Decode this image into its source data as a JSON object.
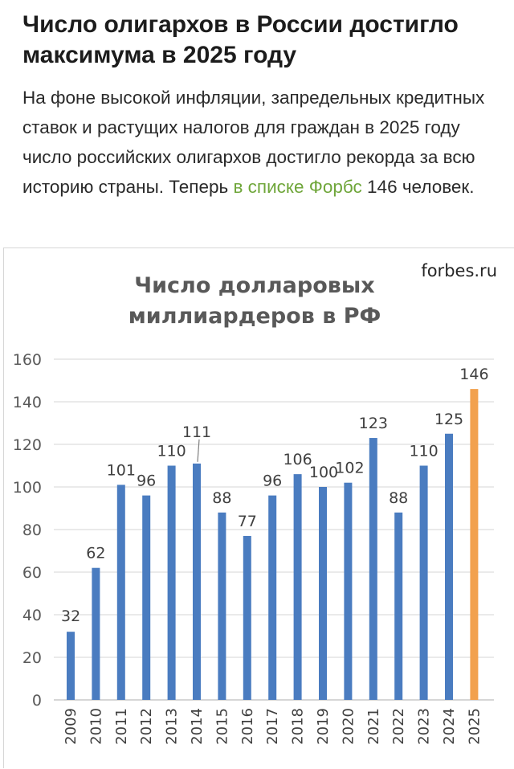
{
  "article": {
    "headline": "Число олигархов в России достигло максимума в 2025 году",
    "lead_before": "На фоне высокой инфляции, запредельных кредитных ставок и растущих налогов для граждан в 2025 году число российских олигархов достигло рекорда за всю историю страны. Теперь ",
    "lead_link": "в списке Форбс",
    "lead_after": " 146 человек.",
    "link_color": "#6fa63a"
  },
  "chart_data": {
    "type": "bar",
    "source_label": "forbes.ru",
    "title": "Число долларовых миллиардеров в РФ",
    "title_lines": [
      "Число долларовых",
      "миллиардеров в РФ"
    ],
    "categories": [
      "2009",
      "2010",
      "2011",
      "2012",
      "2013",
      "2014",
      "2015",
      "2016",
      "2017",
      "2018",
      "2019",
      "2020",
      "2021",
      "2022",
      "2023",
      "2024",
      "2025"
    ],
    "series": [
      {
        "values": [
          32,
          62,
          101,
          96,
          110,
          111,
          88,
          77,
          96,
          106,
          100,
          102,
          123,
          88,
          110,
          125,
          146
        ]
      }
    ],
    "data_labels": [
      "32",
      "62",
      "101",
      "96",
      "110",
      "111",
      "88",
      "77",
      "96",
      "106",
      "100",
      "102",
      "123",
      "88",
      "110",
      "125",
      "146"
    ],
    "ylim": [
      0,
      160
    ],
    "yticks": [
      0,
      20,
      40,
      60,
      80,
      100,
      120,
      140,
      160
    ],
    "grid": true,
    "bar_color": "#4a7cc0",
    "highlight_index": 16,
    "highlight_color": "#f2a14e"
  }
}
